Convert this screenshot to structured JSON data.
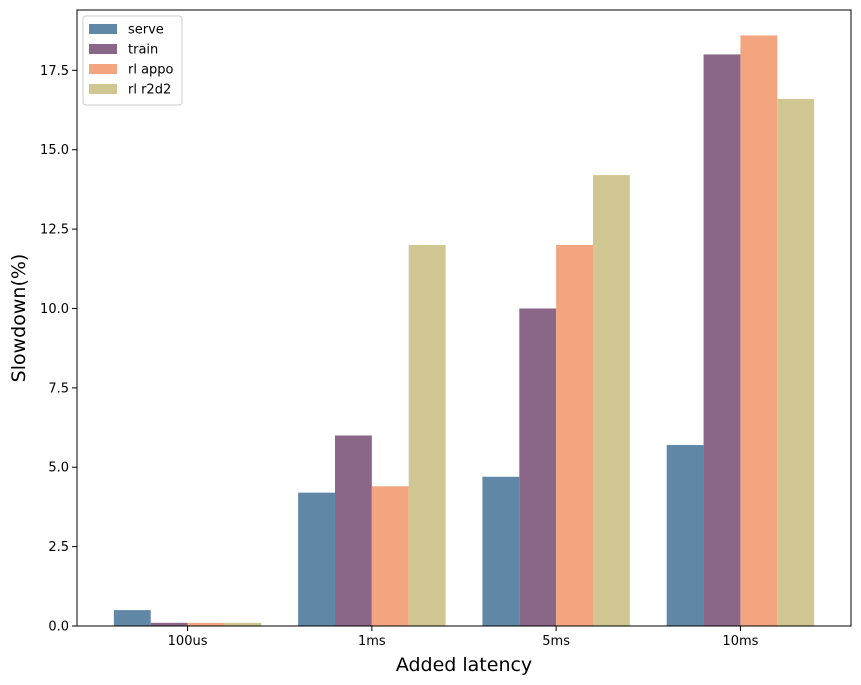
{
  "chart_data": {
    "type": "bar",
    "title": "",
    "xlabel": "Added latency",
    "ylabel": "Slowdown(%)",
    "categories": [
      "100us",
      "1ms",
      "5ms",
      "10ms"
    ],
    "series": [
      {
        "name": "serve",
        "color": "#6088a6",
        "values": [
          0.5,
          4.2,
          4.7,
          5.7
        ]
      },
      {
        "name": "train",
        "color": "#8a6688",
        "values": [
          0.1,
          6.0,
          10.0,
          18.0
        ]
      },
      {
        "name": "rl appo",
        "color": "#f3a57f",
        "values": [
          0.1,
          4.4,
          12.0,
          18.6
        ]
      },
      {
        "name": "rl r2d2",
        "color": "#d0c692",
        "values": [
          0.1,
          12.0,
          14.2,
          16.6
        ]
      }
    ],
    "ylim": [
      0,
      19.4
    ],
    "yticks": [
      0.0,
      2.5,
      5.0,
      7.5,
      10.0,
      12.5,
      15.0,
      17.5
    ],
    "ytick_labels": [
      "0.0",
      "2.5",
      "5.0",
      "7.5",
      "10.0",
      "12.5",
      "15.0",
      "17.5"
    ],
    "grid": false,
    "legend_position": "top-left"
  }
}
